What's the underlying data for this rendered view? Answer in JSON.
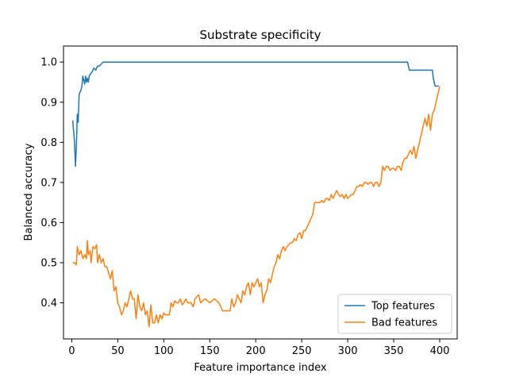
{
  "chart_data": {
    "type": "line",
    "title": "Substrate specificity",
    "xlabel": "Feature importance index",
    "ylabel": "Balanced accuracy",
    "xlim": [
      -9,
      419
    ],
    "ylim": [
      0.31,
      1.04
    ],
    "xticks": [
      0,
      50,
      100,
      150,
      200,
      250,
      300,
      350,
      400
    ],
    "yticks": [
      0.4,
      0.5,
      0.6,
      0.7,
      0.8,
      0.9,
      1.0
    ],
    "xtick_labels": [
      "0",
      "50",
      "100",
      "150",
      "200",
      "250",
      "300",
      "350",
      "400"
    ],
    "ytick_labels": [
      "0.4",
      "0.5",
      "0.6",
      "0.7",
      "0.8",
      "0.9",
      "1.0"
    ],
    "grid": false,
    "legend_position": "lower-right",
    "series": [
      {
        "name": "Top features",
        "color": "#1f77b4",
        "points": [
          [
            1,
            0.855
          ],
          [
            3,
            0.8
          ],
          [
            4,
            0.74
          ],
          [
            5,
            0.79
          ],
          [
            6,
            0.87
          ],
          [
            7,
            0.85
          ],
          [
            8,
            0.92
          ],
          [
            10,
            0.93
          ],
          [
            11,
            0.94
          ],
          [
            12,
            0.965
          ],
          [
            13,
            0.955
          ],
          [
            14,
            0.945
          ],
          [
            15,
            0.965
          ],
          [
            16,
            0.95
          ],
          [
            17,
            0.96
          ],
          [
            18,
            0.95
          ],
          [
            19,
            0.965
          ],
          [
            20,
            0.97
          ],
          [
            22,
            0.975
          ],
          [
            24,
            0.985
          ],
          [
            26,
            0.98
          ],
          [
            28,
            0.99
          ],
          [
            30,
            0.99
          ],
          [
            32,
            0.995
          ],
          [
            34,
            1.0
          ],
          [
            36,
            1.0
          ],
          [
            100,
            1.0
          ],
          [
            200,
            1.0
          ],
          [
            300,
            1.0
          ],
          [
            365,
            1.0
          ],
          [
            367,
            0.98
          ],
          [
            380,
            0.98
          ],
          [
            392,
            0.98
          ],
          [
            393,
            0.96
          ],
          [
            395,
            0.94
          ],
          [
            399,
            0.94
          ]
        ]
      },
      {
        "name": "Bad features",
        "color": "#ff7f0e",
        "points": [
          [
            1,
            0.5
          ],
          [
            3,
            0.5
          ],
          [
            5,
            0.495
          ],
          [
            6,
            0.54
          ],
          [
            8,
            0.52
          ],
          [
            10,
            0.53
          ],
          [
            12,
            0.51
          ],
          [
            14,
            0.52
          ],
          [
            16,
            0.51
          ],
          [
            17,
            0.555
          ],
          [
            18,
            0.52
          ],
          [
            20,
            0.53
          ],
          [
            21,
            0.5
          ],
          [
            23,
            0.54
          ],
          [
            25,
            0.535
          ],
          [
            27,
            0.545
          ],
          [
            28,
            0.5
          ],
          [
            30,
            0.52
          ],
          [
            32,
            0.5
          ],
          [
            34,
            0.51
          ],
          [
            36,
            0.49
          ],
          [
            38,
            0.49
          ],
          [
            40,
            0.475
          ],
          [
            42,
            0.46
          ],
          [
            44,
            0.48
          ],
          [
            46,
            0.43
          ],
          [
            48,
            0.44
          ],
          [
            50,
            0.4
          ],
          [
            52,
            0.39
          ],
          [
            54,
            0.37
          ],
          [
            56,
            0.38
          ],
          [
            58,
            0.4
          ],
          [
            60,
            0.39
          ],
          [
            62,
            0.41
          ],
          [
            64,
            0.43
          ],
          [
            66,
            0.41
          ],
          [
            68,
            0.41
          ],
          [
            70,
            0.36
          ],
          [
            72,
            0.42
          ],
          [
            74,
            0.39
          ],
          [
            76,
            0.38
          ],
          [
            78,
            0.4
          ],
          [
            80,
            0.37
          ],
          [
            82,
            0.38
          ],
          [
            84,
            0.34
          ],
          [
            86,
            0.395
          ],
          [
            88,
            0.35
          ],
          [
            90,
            0.35
          ],
          [
            92,
            0.37
          ],
          [
            94,
            0.35
          ],
          [
            96,
            0.37
          ],
          [
            98,
            0.36
          ],
          [
            100,
            0.375
          ],
          [
            102,
            0.37
          ],
          [
            104,
            0.37
          ],
          [
            106,
            0.37
          ],
          [
            108,
            0.4
          ],
          [
            110,
            0.39
          ],
          [
            112,
            0.405
          ],
          [
            114,
            0.4
          ],
          [
            116,
            0.4
          ],
          [
            118,
            0.41
          ],
          [
            120,
            0.395
          ],
          [
            122,
            0.4
          ],
          [
            124,
            0.41
          ],
          [
            126,
            0.4
          ],
          [
            130,
            0.4
          ],
          [
            132,
            0.39
          ],
          [
            134,
            0.41
          ],
          [
            138,
            0.42
          ],
          [
            140,
            0.4
          ],
          [
            145,
            0.41
          ],
          [
            150,
            0.4
          ],
          [
            155,
            0.41
          ],
          [
            160,
            0.4
          ],
          [
            162,
            0.39
          ],
          [
            164,
            0.38
          ],
          [
            170,
            0.38
          ],
          [
            172,
            0.38
          ],
          [
            174,
            0.41
          ],
          [
            176,
            0.39
          ],
          [
            178,
            0.4
          ],
          [
            180,
            0.42
          ],
          [
            182,
            0.41
          ],
          [
            184,
            0.4
          ],
          [
            186,
            0.43
          ],
          [
            188,
            0.42
          ],
          [
            190,
            0.44
          ],
          [
            192,
            0.45
          ],
          [
            194,
            0.42
          ],
          [
            196,
            0.45
          ],
          [
            198,
            0.44
          ],
          [
            200,
            0.45
          ],
          [
            202,
            0.46
          ],
          [
            204,
            0.44
          ],
          [
            206,
            0.45
          ],
          [
            208,
            0.4
          ],
          [
            210,
            0.42
          ],
          [
            212,
            0.43
          ],
          [
            214,
            0.46
          ],
          [
            216,
            0.45
          ],
          [
            218,
            0.47
          ],
          [
            220,
            0.49
          ],
          [
            222,
            0.5
          ],
          [
            224,
            0.52
          ],
          [
            226,
            0.51
          ],
          [
            228,
            0.53
          ],
          [
            230,
            0.54
          ],
          [
            232,
            0.53
          ],
          [
            234,
            0.54
          ],
          [
            236,
            0.545
          ],
          [
            238,
            0.55
          ],
          [
            240,
            0.55
          ],
          [
            242,
            0.56
          ],
          [
            244,
            0.555
          ],
          [
            246,
            0.57
          ],
          [
            248,
            0.575
          ],
          [
            250,
            0.56
          ],
          [
            252,
            0.58
          ],
          [
            254,
            0.58
          ],
          [
            256,
            0.59
          ],
          [
            258,
            0.6
          ],
          [
            260,
            0.61
          ],
          [
            262,
            0.62
          ],
          [
            264,
            0.65
          ],
          [
            266,
            0.65
          ],
          [
            270,
            0.65
          ],
          [
            272,
            0.655
          ],
          [
            274,
            0.65
          ],
          [
            276,
            0.66
          ],
          [
            278,
            0.66
          ],
          [
            280,
            0.655
          ],
          [
            282,
            0.67
          ],
          [
            284,
            0.66
          ],
          [
            286,
            0.67
          ],
          [
            288,
            0.68
          ],
          [
            290,
            0.67
          ],
          [
            292,
            0.665
          ],
          [
            294,
            0.67
          ],
          [
            296,
            0.66
          ],
          [
            298,
            0.67
          ],
          [
            300,
            0.66
          ],
          [
            302,
            0.665
          ],
          [
            304,
            0.67
          ],
          [
            306,
            0.67
          ],
          [
            308,
            0.68
          ],
          [
            310,
            0.69
          ],
          [
            312,
            0.69
          ],
          [
            314,
            0.695
          ],
          [
            316,
            0.69
          ],
          [
            318,
            0.7
          ],
          [
            320,
            0.7
          ],
          [
            322,
            0.695
          ],
          [
            324,
            0.7
          ],
          [
            326,
            0.7
          ],
          [
            328,
            0.69
          ],
          [
            330,
            0.7
          ],
          [
            332,
            0.7
          ],
          [
            334,
            0.69
          ],
          [
            336,
            0.7
          ],
          [
            338,
            0.74
          ],
          [
            340,
            0.73
          ],
          [
            342,
            0.74
          ],
          [
            344,
            0.74
          ],
          [
            346,
            0.73
          ],
          [
            348,
            0.735
          ],
          [
            350,
            0.735
          ],
          [
            352,
            0.73
          ],
          [
            354,
            0.74
          ],
          [
            356,
            0.74
          ],
          [
            358,
            0.73
          ],
          [
            360,
            0.75
          ],
          [
            362,
            0.76
          ],
          [
            364,
            0.76
          ],
          [
            366,
            0.77
          ],
          [
            368,
            0.78
          ],
          [
            370,
            0.77
          ],
          [
            372,
            0.79
          ],
          [
            374,
            0.76
          ],
          [
            376,
            0.78
          ],
          [
            378,
            0.8
          ],
          [
            380,
            0.82
          ],
          [
            382,
            0.84
          ],
          [
            384,
            0.86
          ],
          [
            386,
            0.84
          ],
          [
            388,
            0.87
          ],
          [
            390,
            0.83
          ],
          [
            392,
            0.87
          ],
          [
            394,
            0.88
          ],
          [
            396,
            0.9
          ],
          [
            398,
            0.92
          ],
          [
            400,
            0.94
          ]
        ]
      }
    ]
  }
}
